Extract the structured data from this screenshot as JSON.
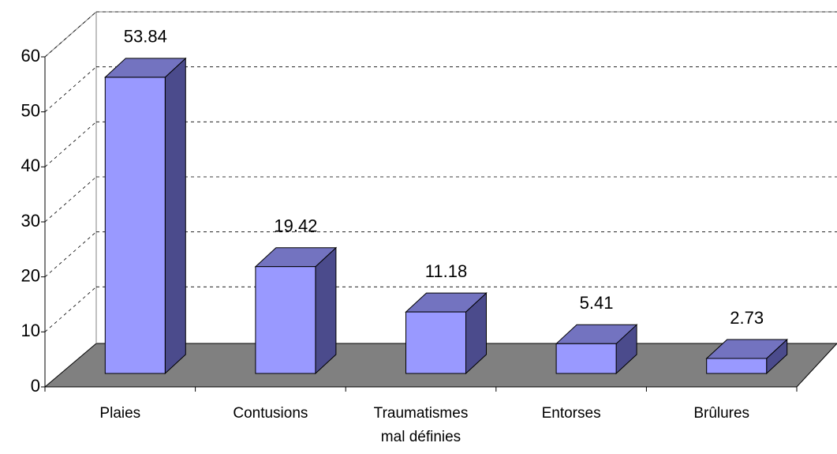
{
  "chart_data": {
    "type": "bar3d",
    "categories": [
      "Plaies",
      "Contusions",
      "Traumatismes\nmal définies",
      "Entorses",
      "Brûlures"
    ],
    "values": [
      53.84,
      19.42,
      11.18,
      5.41,
      2.73
    ],
    "color": "#9999ff",
    "ylim": [
      0,
      60
    ],
    "yticks": [
      0,
      10,
      20,
      30,
      40,
      50,
      60
    ],
    "grid": true
  }
}
